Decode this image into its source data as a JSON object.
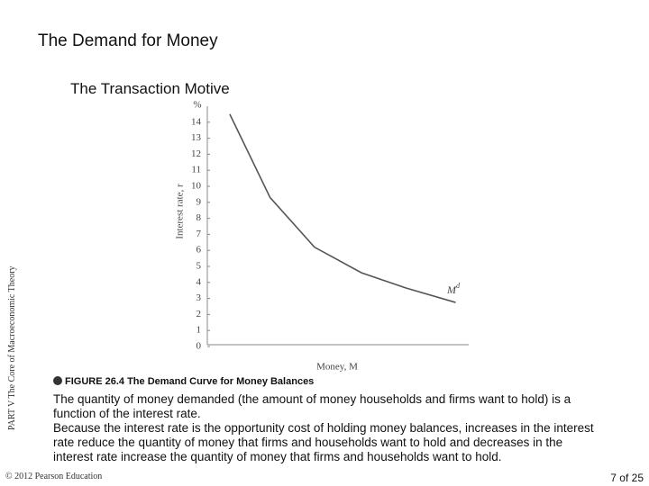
{
  "title": "The Demand for Money",
  "subtitle": "The Transaction Motive",
  "side_label": "PART V  The Core of Macroeconomic Theory",
  "figure_caption": "FIGURE 26.4  The Demand Curve for Money Balances",
  "paragraphs": [
    "The quantity of money demanded (the amount of money households and firms want to hold) is a function of the interest rate.",
    "Because the interest rate is the opportunity cost of holding money balances, increases in the interest rate reduce the quantity of money that firms and households want to hold and decreases in the interest rate increase the quantity of money that firms and households want to hold."
  ],
  "footer": "© 2012 Pearson Education",
  "page_number": "7 of 25",
  "chart_data": {
    "type": "line",
    "x_label": "Money, M",
    "y_label": "Interest rate, r",
    "y_unit": "%",
    "curve_label": {
      "base": "M",
      "sup": "d"
    },
    "x": [
      8.6,
      24,
      41,
      59,
      76,
      95
    ],
    "series": [
      {
        "name": "Md",
        "color": "#555555",
        "values": [
          14.5,
          9.3,
          6.2,
          4.6,
          3.65,
          2.75
        ]
      }
    ],
    "xlim": [
      0,
      100
    ],
    "ylim": [
      0,
      15
    ],
    "yticks": [
      0,
      1,
      2,
      3,
      4,
      5,
      6,
      7,
      8,
      9,
      10,
      11,
      12,
      13,
      14
    ]
  }
}
